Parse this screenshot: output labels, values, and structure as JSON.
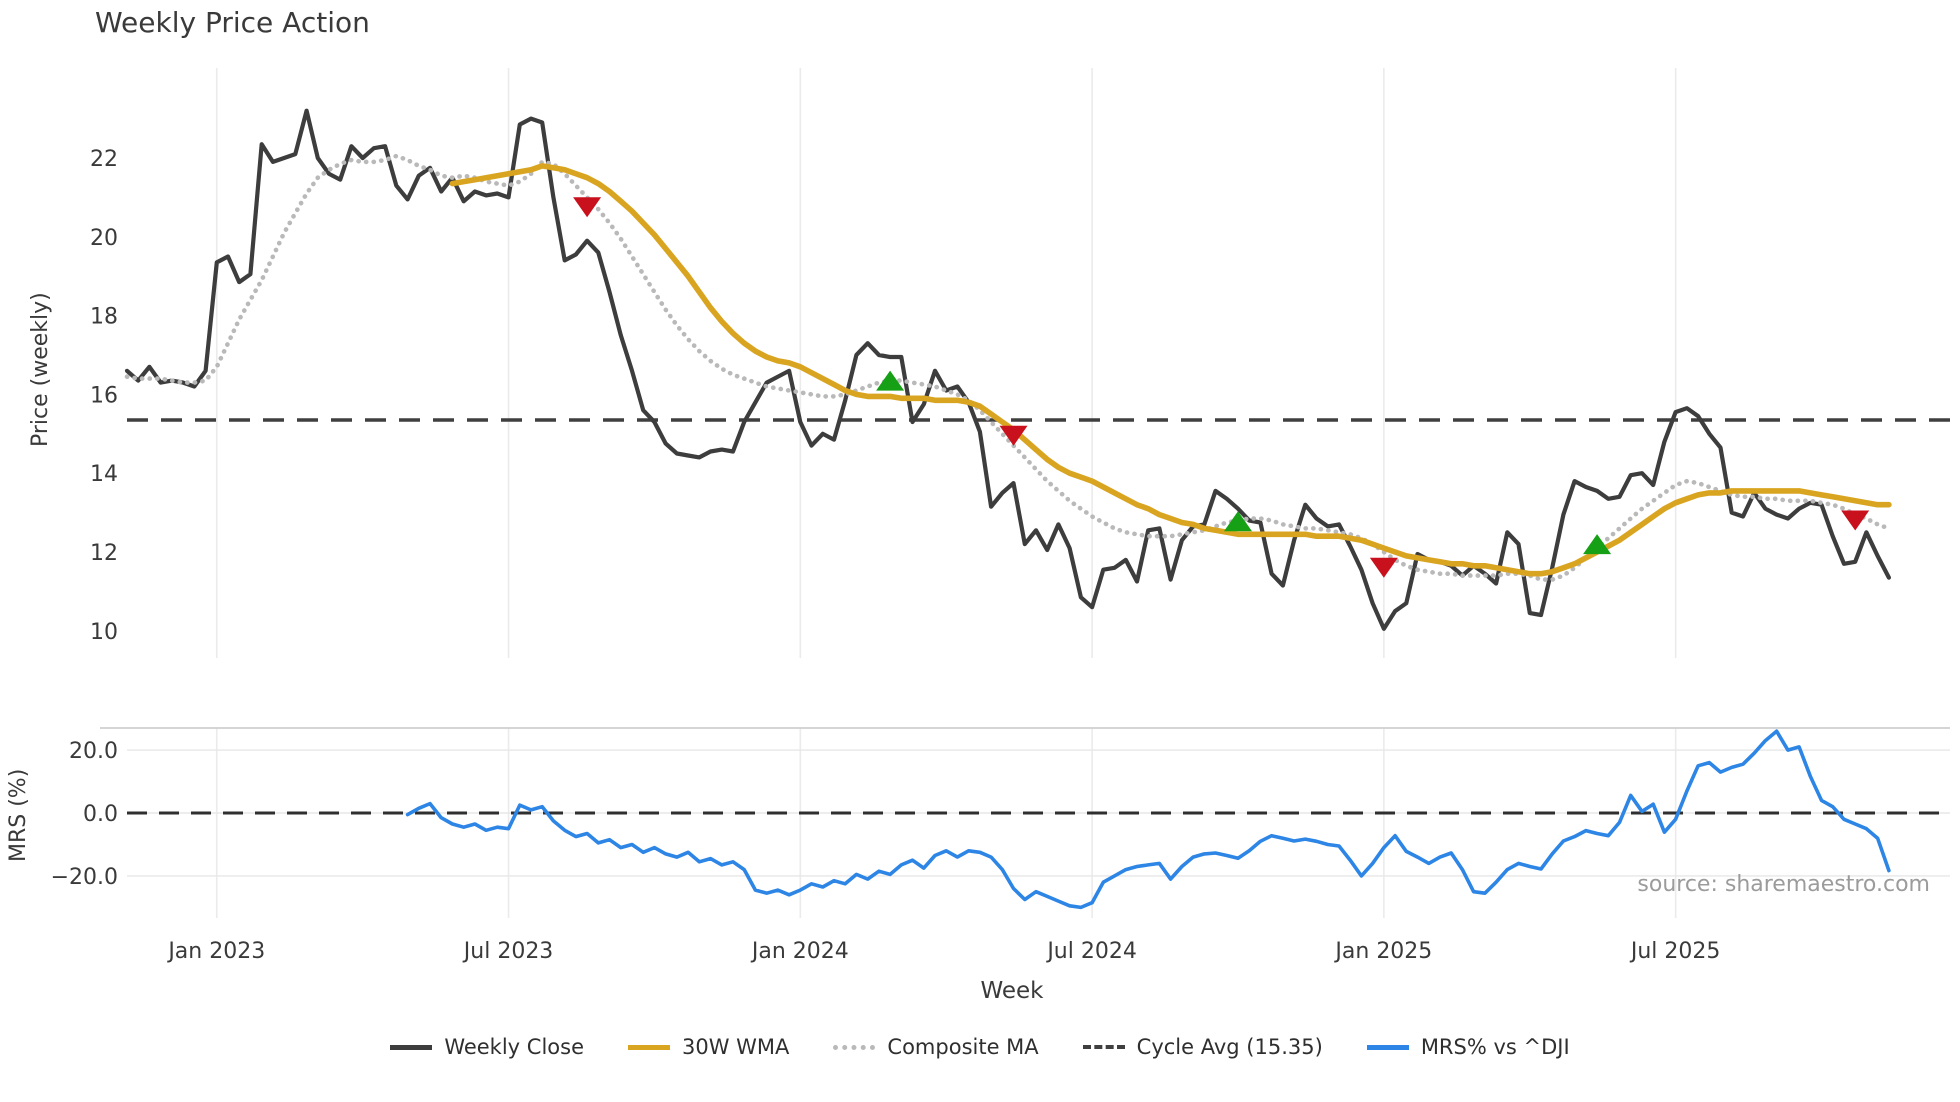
{
  "title": "Weekly Price Action",
  "xlabel": "Week",
  "source_text": "source: sharemaestro.com",
  "colors": {
    "weekly_close": "#3d3d3d",
    "wma30": "#D9A521",
    "composite": "#b9b9b9",
    "cycle_avg": "#3f3f3f",
    "mrs": "#2D85E5",
    "buy_marker": "#16A016",
    "sell_marker": "#C9111E",
    "grid": "#ebebeb",
    "panel_border": "#cfcfcf",
    "tick_text": "#3a3a3a"
  },
  "legend": [
    {
      "label": "Weekly Close",
      "style": "solid",
      "color": "#3d3d3d"
    },
    {
      "label": "30W WMA",
      "style": "solid",
      "color": "#D9A521"
    },
    {
      "label": "Composite MA",
      "style": "dotted",
      "color": "#b9b9b9"
    },
    {
      "label": "Cycle Avg (15.35)",
      "style": "dashed",
      "color": "#3f3f3f"
    },
    {
      "label": "MRS% vs ^DJI",
      "style": "solid",
      "color": "#2D85E5"
    }
  ],
  "chart_data": [
    {
      "type": "line",
      "panel": "price",
      "title": "Weekly Price Action",
      "xlabel": "Week",
      "ylabel": "Price (weekly)",
      "ylim": [
        9.3,
        23.6
      ],
      "yticks": [
        10,
        12,
        14,
        16,
        18,
        20,
        22
      ],
      "grid": "vertical-only",
      "xticks": [
        {
          "label": "Jan 2023",
          "week": 8
        },
        {
          "label": "Jul 2023",
          "week": 34
        },
        {
          "label": "Jan 2024",
          "week": 60
        },
        {
          "label": "Jul 2024",
          "week": 86
        },
        {
          "label": "Jan 2025",
          "week": 112
        },
        {
          "label": "Jul 2025",
          "week": 138
        }
      ],
      "cycle_avg": 15.35,
      "series": [
        {
          "name": "Weekly Close",
          "style": "solid",
          "color": "#3d3d3d",
          "start_week": 0,
          "values": [
            16.6,
            16.35,
            16.7,
            16.3,
            16.35,
            16.3,
            16.2,
            16.6,
            19.35,
            19.5,
            18.85,
            19.05,
            22.35,
            21.9,
            22.0,
            22.1,
            23.2,
            22.0,
            21.6,
            21.45,
            22.3,
            22.0,
            22.25,
            22.3,
            21.3,
            20.95,
            21.55,
            21.75,
            21.15,
            21.5,
            20.9,
            21.15,
            21.05,
            21.1,
            21.0,
            22.85,
            23.0,
            22.9,
            21.0,
            19.4,
            19.55,
            19.9,
            19.6,
            18.6,
            17.5,
            16.6,
            15.6,
            15.3,
            14.75,
            14.5,
            14.45,
            14.4,
            14.55,
            14.6,
            14.55,
            15.3,
            15.8,
            16.3,
            16.45,
            16.6,
            15.3,
            14.7,
            15.0,
            14.85,
            15.85,
            17.0,
            17.3,
            17.0,
            16.95,
            16.95,
            15.3,
            15.75,
            16.6,
            16.1,
            16.2,
            15.8,
            15.05,
            13.15,
            13.5,
            13.75,
            12.2,
            12.55,
            12.05,
            12.7,
            12.1,
            10.85,
            10.6,
            11.55,
            11.6,
            11.8,
            11.25,
            12.55,
            12.6,
            11.3,
            12.3,
            12.65,
            12.7,
            13.55,
            13.35,
            13.1,
            12.8,
            12.75,
            11.45,
            11.15,
            12.3,
            13.2,
            12.85,
            12.65,
            12.7,
            12.15,
            11.55,
            10.7,
            10.05,
            10.5,
            10.7,
            11.95,
            11.8,
            11.75,
            11.65,
            11.4,
            11.65,
            11.45,
            11.2,
            12.5,
            12.2,
            10.45,
            10.4,
            11.6,
            12.95,
            13.8,
            13.65,
            13.55,
            13.35,
            13.4,
            13.95,
            14.0,
            13.7,
            14.8,
            15.55,
            15.65,
            15.45,
            15.0,
            14.65,
            13.0,
            12.9,
            13.5,
            13.1,
            12.95,
            12.85,
            13.1,
            13.25,
            13.2,
            12.4,
            11.7,
            11.75,
            12.5,
            11.9,
            11.35
          ]
        },
        {
          "name": "30W WMA",
          "style": "solid",
          "color": "#D9A521",
          "start_week": 29,
          "values": [
            21.35,
            21.4,
            21.45,
            21.5,
            21.55,
            21.6,
            21.65,
            21.7,
            21.8,
            21.75,
            21.7,
            21.6,
            21.5,
            21.35,
            21.15,
            20.9,
            20.65,
            20.35,
            20.05,
            19.7,
            19.35,
            19.0,
            18.6,
            18.2,
            17.85,
            17.55,
            17.3,
            17.1,
            16.95,
            16.85,
            16.8,
            16.7,
            16.55,
            16.4,
            16.25,
            16.1,
            16.0,
            15.95,
            15.95,
            15.95,
            15.9,
            15.9,
            15.9,
            15.85,
            15.85,
            15.85,
            15.8,
            15.7,
            15.5,
            15.3,
            15.1,
            14.85,
            14.6,
            14.35,
            14.15,
            14.0,
            13.9,
            13.8,
            13.65,
            13.5,
            13.35,
            13.2,
            13.1,
            12.95,
            12.85,
            12.75,
            12.7,
            12.6,
            12.55,
            12.5,
            12.45,
            12.45,
            12.45,
            12.45,
            12.45,
            12.45,
            12.45,
            12.4,
            12.4,
            12.4,
            12.35,
            12.3,
            12.2,
            12.1,
            12.0,
            11.9,
            11.85,
            11.8,
            11.75,
            11.7,
            11.7,
            11.65,
            11.65,
            11.6,
            11.55,
            11.5,
            11.45,
            11.45,
            11.5,
            11.6,
            11.7,
            11.85,
            12.0,
            12.15,
            12.3,
            12.5,
            12.7,
            12.9,
            13.1,
            13.25,
            13.35,
            13.45,
            13.5,
            13.5,
            13.55,
            13.55,
            13.55,
            13.55,
            13.55,
            13.55,
            13.55,
            13.5,
            13.45,
            13.4,
            13.35,
            13.3,
            13.25,
            13.2,
            13.2
          ]
        },
        {
          "name": "Composite MA",
          "style": "dotted",
          "color": "#b9b9b9",
          "start_week": 0,
          "values": [
            16.45,
            16.4,
            16.4,
            16.4,
            16.35,
            16.3,
            16.3,
            16.35,
            16.7,
            17.3,
            17.9,
            18.4,
            18.9,
            19.5,
            20.1,
            20.6,
            21.1,
            21.5,
            21.7,
            21.85,
            21.95,
            21.9,
            21.9,
            21.95,
            22.05,
            21.95,
            21.8,
            21.7,
            21.55,
            21.5,
            21.55,
            21.5,
            21.4,
            21.35,
            21.3,
            21.4,
            21.6,
            21.9,
            21.85,
            21.6,
            21.3,
            21.0,
            20.7,
            20.35,
            19.95,
            19.5,
            19.05,
            18.6,
            18.15,
            17.75,
            17.4,
            17.1,
            16.85,
            16.65,
            16.5,
            16.4,
            16.3,
            16.2,
            16.15,
            16.1,
            16.05,
            16.0,
            15.95,
            15.95,
            16.0,
            16.1,
            16.2,
            16.3,
            16.35,
            16.35,
            16.3,
            16.25,
            16.2,
            16.1,
            16.0,
            15.85,
            15.6,
            15.3,
            15.0,
            14.7,
            14.4,
            14.1,
            13.8,
            13.55,
            13.3,
            13.1,
            12.9,
            12.75,
            12.6,
            12.5,
            12.45,
            12.4,
            12.4,
            12.4,
            12.45,
            12.5,
            12.55,
            12.65,
            12.75,
            12.8,
            12.85,
            12.85,
            12.8,
            12.7,
            12.65,
            12.6,
            12.6,
            12.55,
            12.5,
            12.45,
            12.35,
            12.2,
            12.0,
            11.8,
            11.65,
            11.55,
            11.5,
            11.45,
            11.45,
            11.4,
            11.4,
            11.4,
            11.4,
            11.45,
            11.45,
            11.4,
            11.3,
            11.3,
            11.4,
            11.6,
            11.85,
            12.1,
            12.35,
            12.6,
            12.85,
            13.1,
            13.3,
            13.5,
            13.7,
            13.8,
            13.75,
            13.65,
            13.55,
            13.45,
            13.4,
            13.4,
            13.35,
            13.35,
            13.3,
            13.3,
            13.3,
            13.25,
            13.2,
            13.1,
            12.95,
            12.85,
            12.7,
            12.6
          ]
        }
      ],
      "markers": [
        {
          "week": 41,
          "price": 20.75,
          "type": "sell"
        },
        {
          "week": 68,
          "price": 16.35,
          "type": "buy"
        },
        {
          "week": 79,
          "price": 14.95,
          "type": "sell"
        },
        {
          "week": 99,
          "price": 12.78,
          "type": "buy"
        },
        {
          "week": 112,
          "price": 11.6,
          "type": "sell"
        },
        {
          "week": 131,
          "price": 12.2,
          "type": "buy"
        },
        {
          "week": 154,
          "price": 12.8,
          "type": "sell"
        }
      ]
    },
    {
      "type": "line",
      "panel": "mrs",
      "ylabel": "MRS (%)",
      "ylim": [
        -33,
        27
      ],
      "yticks": [
        20.0,
        0.0,
        -20.0
      ],
      "ytick_labels": [
        "20.0",
        "0.0",
        "−20.0"
      ],
      "zero_line": 0,
      "series": [
        {
          "name": "MRS% vs ^DJI",
          "style": "solid",
          "color": "#2D85E5",
          "start_week": 25,
          "values": [
            -0.5,
            1.5,
            3.0,
            -1.5,
            -3.5,
            -4.5,
            -3.5,
            -5.5,
            -4.5,
            -5.0,
            2.5,
            1.0,
            2.0,
            -2.5,
            -5.5,
            -7.5,
            -6.5,
            -9.5,
            -8.5,
            -11.0,
            -10.0,
            -12.5,
            -11.0,
            -13.0,
            -14.0,
            -12.5,
            -15.5,
            -14.5,
            -16.5,
            -15.5,
            -18.0,
            -24.5,
            -25.5,
            -24.5,
            -26.0,
            -24.5,
            -22.5,
            -23.5,
            -21.5,
            -22.5,
            -19.5,
            -21.0,
            -18.5,
            -19.5,
            -16.5,
            -15.0,
            -17.5,
            -13.5,
            -12.0,
            -14.0,
            -12.0,
            -12.5,
            -14.0,
            -18.0,
            -24.0,
            -27.5,
            -25.0,
            -26.5,
            -28.0,
            -29.5,
            -30.0,
            -28.5,
            -22.0,
            -20.0,
            -18.0,
            -17.0,
            -16.5,
            -16.0,
            -21.0,
            -17.0,
            -14.0,
            -13.0,
            -12.7,
            -13.5,
            -14.4,
            -12.0,
            -9.0,
            -7.2,
            -8.0,
            -8.9,
            -8.3,
            -9.0,
            -10.0,
            -10.5,
            -15.0,
            -20.0,
            -16.0,
            -11.0,
            -7.2,
            -12.2,
            -14.0,
            -16.0,
            -14.0,
            -12.7,
            -18.0,
            -25.0,
            -25.5,
            -22.0,
            -18.0,
            -16.0,
            -17.0,
            -17.8,
            -13.0,
            -8.9,
            -7.5,
            -5.6,
            -6.5,
            -7.2,
            -3.0,
            5.6,
            0.5,
            2.8,
            -6.1,
            -2.0,
            7.0,
            15.0,
            16.0,
            13.0,
            14.5,
            15.5,
            19.0,
            23.0,
            26.0,
            20.0,
            21.0,
            11.7,
            4.0,
            2.0,
            -2.0,
            -3.5,
            -5.0,
            -8.0,
            -18.3
          ]
        }
      ]
    }
  ]
}
